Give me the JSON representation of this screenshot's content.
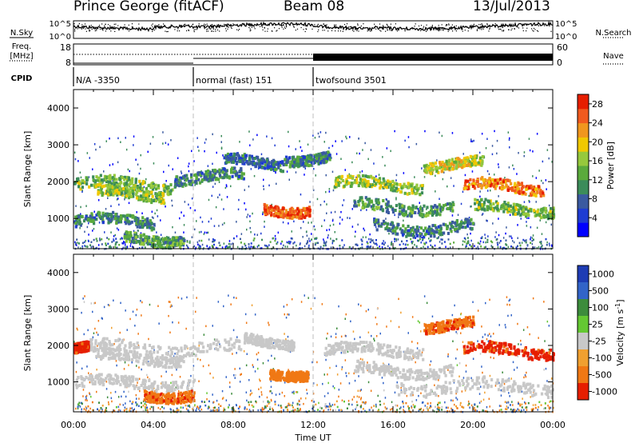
{
  "header": {
    "station": "Prince George (fitACF)",
    "beam": "Beam 08",
    "date": "13/Jul/2013"
  },
  "strip": {
    "nsky_label": "N.Sky",
    "nsearch_label": "N.Search",
    "freq_label_1": "Freq.",
    "freq_label_2": "[MHz]",
    "nave_label": "Nave",
    "cpid_label": "CPID",
    "noise_ticks": [
      "10^5",
      "10^0"
    ],
    "freq_ticks": [
      "18",
      "8"
    ],
    "nave_ticks": [
      "60",
      "0"
    ]
  },
  "cpid_segments": [
    {
      "label": "N/A -3350",
      "start_hour": 0,
      "end_hour": 6
    },
    {
      "label": "normal (fast) 151",
      "start_hour": 6,
      "end_hour": 12
    },
    {
      "label": "twofsound 3501",
      "start_hour": 12,
      "end_hour": 24
    }
  ],
  "chart_data": [
    {
      "type": "heatmap",
      "panel": "power",
      "xlabel": "Time UT",
      "ylabel": "Slant Range [km]",
      "xlim": [
        0,
        24
      ],
      "ylim": [
        180,
        4500
      ],
      "x_tick_labels": [
        "00:00",
        "04:00",
        "08:00",
        "12:00",
        "16:00",
        "20:00",
        "00:00"
      ],
      "y_ticks": [
        1000,
        2000,
        3000,
        4000
      ],
      "colorbar": {
        "label": "Power [dB]",
        "ticks": [
          4,
          8,
          12,
          16,
          20,
          24,
          28
        ],
        "range": [
          0,
          30
        ],
        "colors": [
          "#0000ff",
          "#1e3cd2",
          "#3a5aa0",
          "#3c8c5a",
          "#5aaa3c",
          "#96c83c",
          "#f0c800",
          "#f0961e",
          "#f05a1e",
          "#e61e00"
        ]
      },
      "bands": [
        {
          "range_km": 1950,
          "start_hour": 0.0,
          "end_hour": 5.0,
          "power_db": 14
        },
        {
          "range_km": 1700,
          "start_hour": 1.0,
          "end_hour": 4.5,
          "power_db": 16
        },
        {
          "range_km": 2150,
          "start_hour": 5.0,
          "end_hour": 8.5,
          "power_db": 10
        },
        {
          "range_km": 2550,
          "start_hour": 7.5,
          "end_hour": 10.5,
          "power_db": 8
        },
        {
          "range_km": 950,
          "start_hour": 0.0,
          "end_hour": 4.0,
          "power_db": 10
        },
        {
          "range_km": 500,
          "start_hour": 2.5,
          "end_hour": 5.5,
          "power_db": 12
        },
        {
          "range_km": 1300,
          "start_hour": 9.5,
          "end_hour": 11.8,
          "power_db": 26
        },
        {
          "range_km": 2700,
          "start_hour": 10.5,
          "end_hour": 12.8,
          "power_db": 10
        },
        {
          "range_km": 1950,
          "start_hour": 13.0,
          "end_hour": 17.5,
          "power_db": 16
        },
        {
          "range_km": 1350,
          "start_hour": 14.0,
          "end_hour": 19.0,
          "power_db": 12
        },
        {
          "range_km": 800,
          "start_hour": 15.0,
          "end_hour": 20.0,
          "power_db": 10
        },
        {
          "range_km": 2500,
          "start_hour": 17.5,
          "end_hour": 20.5,
          "power_db": 18
        },
        {
          "range_km": 1900,
          "start_hour": 19.5,
          "end_hour": 23.5,
          "power_db": 24
        },
        {
          "range_km": 1300,
          "start_hour": 20.0,
          "end_hour": 24.0,
          "power_db": 14
        }
      ]
    },
    {
      "type": "heatmap",
      "panel": "velocity",
      "xlabel": "Time UT",
      "ylabel": "Slant Range [km]",
      "xlim": [
        0,
        24
      ],
      "ylim": [
        180,
        4500
      ],
      "x_tick_labels": [
        "00:00",
        "04:00",
        "08:00",
        "12:00",
        "16:00",
        "20:00",
        "00:00"
      ],
      "y_ticks": [
        1000,
        2000,
        3000,
        4000
      ],
      "colorbar": {
        "label": "Velocity [m s^-1]",
        "ticks": [
          "1000",
          "500",
          "100",
          "25",
          "-25",
          "-100",
          "-500",
          "-1000"
        ],
        "colors": [
          "#1e3cb4",
          "#3264c8",
          "#3c8c3c",
          "#64c832",
          "#c8c8c8",
          "#f0a030",
          "#f07814",
          "#e61e00"
        ]
      },
      "ground_scatter_bands": [
        {
          "range_km": 1950,
          "start_hour": 0.5,
          "end_hour": 8.5
        },
        {
          "range_km": 1700,
          "start_hour": 1.0,
          "end_hour": 5.5
        },
        {
          "range_km": 2150,
          "start_hour": 8.5,
          "end_hour": 11.0
        },
        {
          "range_km": 1900,
          "start_hour": 12.5,
          "end_hour": 17.5
        },
        {
          "range_km": 1350,
          "start_hour": 14.0,
          "end_hour": 19.0
        },
        {
          "range_km": 1000,
          "start_hour": 0.0,
          "end_hour": 6.0
        },
        {
          "range_km": 900,
          "start_hour": 16.0,
          "end_hour": 24.0
        }
      ],
      "ionospheric_bands": [
        {
          "range_km": 1950,
          "start_hour": 0.0,
          "end_hour": 0.7,
          "velocity": -800
        },
        {
          "range_km": 700,
          "start_hour": 3.5,
          "end_hour": 6.0,
          "velocity": -400
        },
        {
          "range_km": 1300,
          "start_hour": 9.8,
          "end_hour": 11.7,
          "velocity": -300
        },
        {
          "range_km": 2600,
          "start_hour": 17.5,
          "end_hour": 20.0,
          "velocity": -400
        },
        {
          "range_km": 1900,
          "start_hour": 19.5,
          "end_hour": 24.0,
          "velocity": -700
        }
      ]
    }
  ]
}
